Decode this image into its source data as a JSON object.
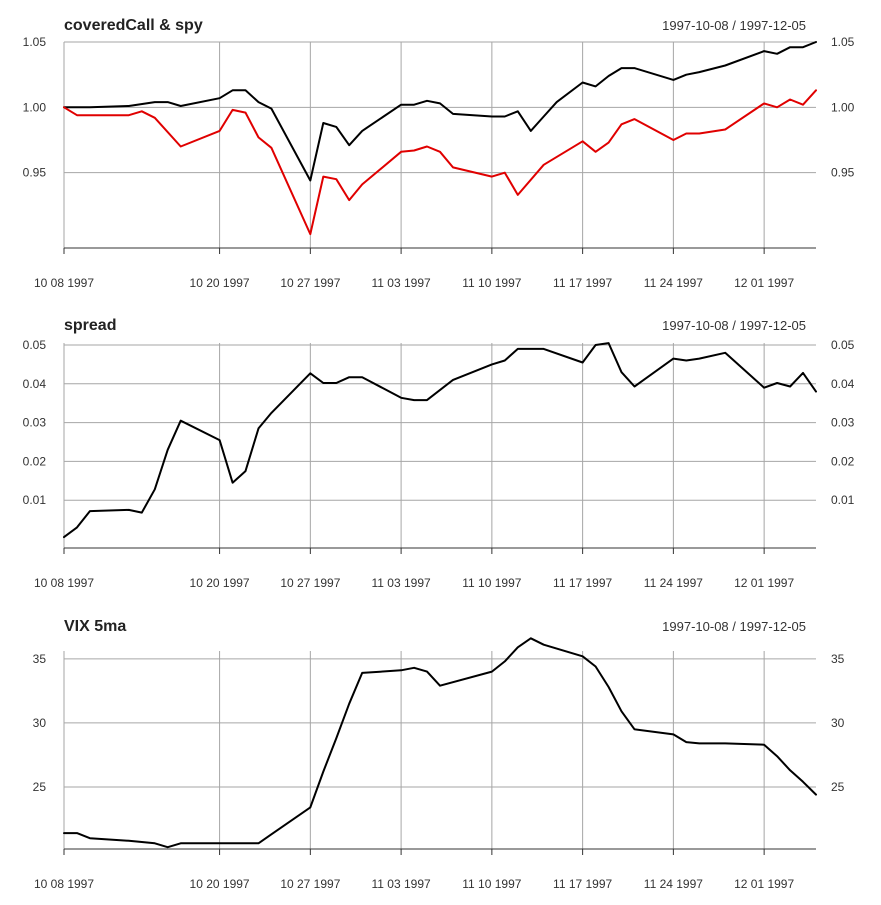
{
  "chart_data": [
    {
      "type": "line",
      "title": "coveredCall & spy",
      "date_range": "1997-10-08 / 1997-12-05",
      "x_ticks": [
        "1997-10-08",
        "1997-10-20",
        "1997-10-27",
        "1997-11-03",
        "1997-11-10",
        "1997-11-17",
        "1997-11-24",
        "1997-12-01"
      ],
      "x_tick_labels": [
        "10 08 1997",
        "10 20 1997",
        "10 27 1997",
        "11 03 1997",
        "11 10 1997",
        "11 17 1997",
        "11 24 1997",
        "12 01 1997"
      ],
      "y_ticks": [
        0.95,
        1.0,
        1.05
      ],
      "y_tick_labels": [
        "0.95",
        "1.00",
        "1.05"
      ],
      "ylim": [
        0.9,
        1.05
      ],
      "series": [
        {
          "color": "#000000",
          "points": [
            [
              "1997-10-08",
              1.0
            ],
            [
              "1997-10-10",
              1.0
            ],
            [
              "1997-10-13",
              1.001
            ],
            [
              "1997-10-15",
              1.004
            ],
            [
              "1997-10-16",
              1.004
            ],
            [
              "1997-10-17",
              1.001
            ],
            [
              "1997-10-20",
              1.007
            ],
            [
              "1997-10-21",
              1.013
            ],
            [
              "1997-10-22",
              1.013
            ],
            [
              "1997-10-23",
              1.004
            ],
            [
              "1997-10-24",
              0.999
            ],
            [
              "1997-10-27",
              0.944
            ],
            [
              "1997-10-28",
              0.988
            ],
            [
              "1997-10-29",
              0.985
            ],
            [
              "1997-10-30",
              0.971
            ],
            [
              "1997-10-31",
              0.982
            ],
            [
              "1997-11-03",
              1.002
            ],
            [
              "1997-11-04",
              1.002
            ],
            [
              "1997-11-05",
              1.005
            ],
            [
              "1997-11-06",
              1.003
            ],
            [
              "1997-11-07",
              0.995
            ],
            [
              "1997-11-10",
              0.993
            ],
            [
              "1997-11-11",
              0.993
            ],
            [
              "1997-11-12",
              0.997
            ],
            [
              "1997-11-13",
              0.982
            ],
            [
              "1997-11-14",
              0.993
            ],
            [
              "1997-11-15",
              1.004
            ],
            [
              "1997-11-17",
              1.019
            ],
            [
              "1997-11-18",
              1.016
            ],
            [
              "1997-11-19",
              1.024
            ],
            [
              "1997-11-20",
              1.03
            ],
            [
              "1997-11-21",
              1.03
            ],
            [
              "1997-11-24",
              1.021
            ],
            [
              "1997-11-25",
              1.025
            ],
            [
              "1997-11-26",
              1.027
            ],
            [
              "1997-11-28",
              1.032
            ],
            [
              "1997-12-01",
              1.043
            ],
            [
              "1997-12-02",
              1.041
            ],
            [
              "1997-12-03",
              1.046
            ],
            [
              "1997-12-04",
              1.046
            ],
            [
              "1997-12-05",
              1.05
            ]
          ]
        },
        {
          "color": "#e00000",
          "points": [
            [
              "1997-10-08",
              1.0
            ],
            [
              "1997-10-09",
              0.994
            ],
            [
              "1997-10-13",
              0.994
            ],
            [
              "1997-10-14",
              0.997
            ],
            [
              "1997-10-15",
              0.992
            ],
            [
              "1997-10-17",
              0.97
            ],
            [
              "1997-10-20",
              0.982
            ],
            [
              "1997-10-21",
              0.998
            ],
            [
              "1997-10-22",
              0.996
            ],
            [
              "1997-10-23",
              0.977
            ],
            [
              "1997-10-24",
              0.969
            ],
            [
              "1997-10-27",
              0.903
            ],
            [
              "1997-10-28",
              0.947
            ],
            [
              "1997-10-29",
              0.945
            ],
            [
              "1997-10-30",
              0.929
            ],
            [
              "1997-10-31",
              0.941
            ],
            [
              "1997-11-03",
              0.966
            ],
            [
              "1997-11-04",
              0.967
            ],
            [
              "1997-11-05",
              0.97
            ],
            [
              "1997-11-06",
              0.966
            ],
            [
              "1997-11-07",
              0.954
            ],
            [
              "1997-11-10",
              0.947
            ],
            [
              "1997-11-11",
              0.95
            ],
            [
              "1997-11-12",
              0.933
            ],
            [
              "1997-11-14",
              0.956
            ],
            [
              "1997-11-17",
              0.974
            ],
            [
              "1997-11-18",
              0.966
            ],
            [
              "1997-11-19",
              0.973
            ],
            [
              "1997-11-20",
              0.987
            ],
            [
              "1997-11-21",
              0.991
            ],
            [
              "1997-11-24",
              0.975
            ],
            [
              "1997-11-25",
              0.98
            ],
            [
              "1997-11-26",
              0.98
            ],
            [
              "1997-11-28",
              0.983
            ],
            [
              "1997-12-01",
              1.003
            ],
            [
              "1997-12-02",
              1.0
            ],
            [
              "1997-12-03",
              1.006
            ],
            [
              "1997-12-04",
              1.002
            ],
            [
              "1997-12-05",
              1.013
            ]
          ]
        }
      ]
    },
    {
      "type": "line",
      "title": "spread",
      "date_range": "1997-10-08 / 1997-12-05",
      "x_ticks": [
        "1997-10-08",
        "1997-10-20",
        "1997-10-27",
        "1997-11-03",
        "1997-11-10",
        "1997-11-17",
        "1997-11-24",
        "1997-12-01"
      ],
      "x_tick_labels": [
        "10 08 1997",
        "10 20 1997",
        "10 27 1997",
        "11 03 1997",
        "11 10 1997",
        "11 17 1997",
        "11 24 1997",
        "12 01 1997"
      ],
      "y_ticks": [
        0.01,
        0.02,
        0.03,
        0.04,
        0.05
      ],
      "y_tick_labels": [
        "0.01",
        "0.02",
        "0.03",
        "0.04",
        "0.05"
      ],
      "ylim": [
        0.0,
        0.05
      ],
      "series": [
        {
          "color": "#000000",
          "points": [
            [
              "1997-10-08",
              0.0005
            ],
            [
              "1997-10-09",
              0.003
            ],
            [
              "1997-10-10",
              0.0072
            ],
            [
              "1997-10-13",
              0.0075
            ],
            [
              "1997-10-14",
              0.0068
            ],
            [
              "1997-10-15",
              0.0128
            ],
            [
              "1997-10-16",
              0.023
            ],
            [
              "1997-10-17",
              0.0305
            ],
            [
              "1997-10-20",
              0.0255
            ],
            [
              "1997-10-21",
              0.0145
            ],
            [
              "1997-10-22",
              0.0175
            ],
            [
              "1997-10-23",
              0.0285
            ],
            [
              "1997-10-24",
              0.0325
            ],
            [
              "1997-10-27",
              0.0427
            ],
            [
              "1997-10-28",
              0.0402
            ],
            [
              "1997-10-29",
              0.0402
            ],
            [
              "1997-10-30",
              0.0417
            ],
            [
              "1997-10-31",
              0.0417
            ],
            [
              "1997-11-03",
              0.0364
            ],
            [
              "1997-11-04",
              0.0358
            ],
            [
              "1997-11-05",
              0.0358
            ],
            [
              "1997-11-07",
              0.041
            ],
            [
              "1997-11-10",
              0.045
            ],
            [
              "1997-11-11",
              0.046
            ],
            [
              "1997-11-12",
              0.049
            ],
            [
              "1997-11-14",
              0.049
            ],
            [
              "1997-11-17",
              0.0455
            ],
            [
              "1997-11-18",
              0.05
            ],
            [
              "1997-11-19",
              0.0505
            ],
            [
              "1997-11-20",
              0.043
            ],
            [
              "1997-11-21",
              0.0393
            ],
            [
              "1997-11-24",
              0.0465
            ],
            [
              "1997-11-25",
              0.046
            ],
            [
              "1997-11-26",
              0.0465
            ],
            [
              "1997-11-28",
              0.048
            ],
            [
              "1997-12-01",
              0.039
            ],
            [
              "1997-12-02",
              0.0402
            ],
            [
              "1997-12-03",
              0.0393
            ],
            [
              "1997-12-04",
              0.0428
            ],
            [
              "1997-12-05",
              0.038
            ]
          ]
        }
      ]
    },
    {
      "type": "line",
      "title": "VIX 5ma",
      "date_range": "1997-10-08 / 1997-12-05",
      "x_ticks": [
        "1997-10-08",
        "1997-10-20",
        "1997-10-27",
        "1997-11-03",
        "1997-11-10",
        "1997-11-17",
        "1997-11-24",
        "1997-12-01"
      ],
      "x_tick_labels": [
        "10 08 1997",
        "10 20 1997",
        "10 27 1997",
        "11 03 1997",
        "11 10 1997",
        "11 17 1997",
        "11 24 1997",
        "12 01 1997"
      ],
      "y_ticks": [
        25,
        30,
        35
      ],
      "y_tick_labels": [
        "25",
        "30",
        "35"
      ],
      "ylim": [
        20,
        36
      ],
      "series": [
        {
          "color": "#000000",
          "points": [
            [
              "1997-10-08",
              21.4
            ],
            [
              "1997-10-09",
              21.4
            ],
            [
              "1997-10-10",
              21.0
            ],
            [
              "1997-10-13",
              20.8
            ],
            [
              "1997-10-15",
              20.6
            ],
            [
              "1997-10-16",
              20.3
            ],
            [
              "1997-10-17",
              20.6
            ],
            [
              "1997-10-20",
              20.6
            ],
            [
              "1997-10-23",
              20.6
            ],
            [
              "1997-10-24",
              21.3
            ],
            [
              "1997-10-27",
              23.4
            ],
            [
              "1997-10-28",
              26.2
            ],
            [
              "1997-10-29",
              28.8
            ],
            [
              "1997-10-30",
              31.5
            ],
            [
              "1997-10-31",
              33.9
            ],
            [
              "1997-11-03",
              34.1
            ],
            [
              "1997-11-04",
              34.3
            ],
            [
              "1997-11-05",
              34.0
            ],
            [
              "1997-11-06",
              32.9
            ],
            [
              "1997-11-10",
              34.0
            ],
            [
              "1997-11-11",
              34.8
            ],
            [
              "1997-11-12",
              35.9
            ],
            [
              "1997-11-13",
              36.6
            ],
            [
              "1997-11-14",
              36.1
            ],
            [
              "1997-11-17",
              35.2
            ],
            [
              "1997-11-18",
              34.4
            ],
            [
              "1997-11-19",
              32.8
            ],
            [
              "1997-11-20",
              30.9
            ],
            [
              "1997-11-21",
              29.5
            ],
            [
              "1997-11-24",
              29.1
            ],
            [
              "1997-11-25",
              28.5
            ],
            [
              "1997-11-26",
              28.4
            ],
            [
              "1997-11-28",
              28.4
            ],
            [
              "1997-12-01",
              28.3
            ],
            [
              "1997-12-02",
              27.4
            ],
            [
              "1997-12-03",
              26.3
            ],
            [
              "1997-12-04",
              25.4
            ],
            [
              "1997-12-05",
              24.4
            ]
          ]
        }
      ]
    }
  ]
}
